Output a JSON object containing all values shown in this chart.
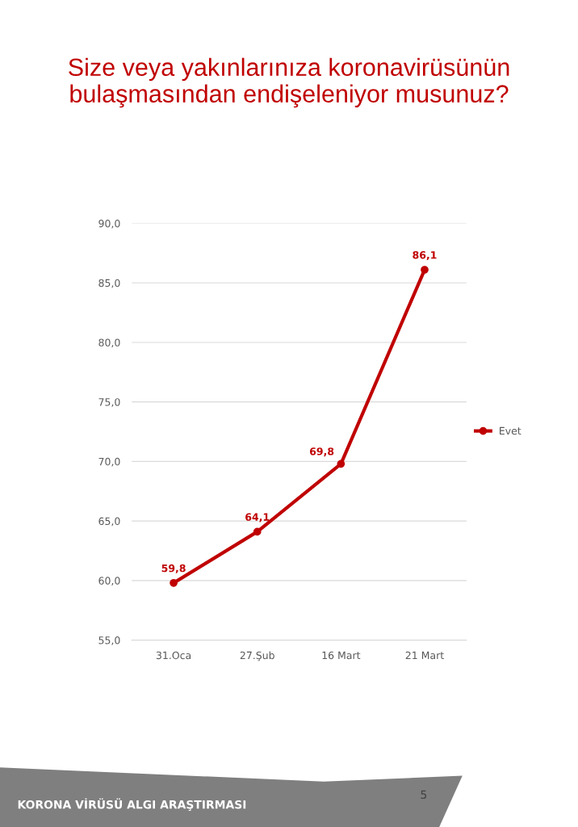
{
  "chart_data": {
    "type": "line",
    "title": "Size veya yakınlarınıza koronavirüsünün\nbulaşmasından endişeleniyor musunuz?",
    "categories": [
      "31.Oca",
      "27.Şub",
      "16 Mart",
      "21 Mart"
    ],
    "series": [
      {
        "name": "Evet",
        "color": "#c00000",
        "values": [
          59.8,
          64.1,
          69.8,
          86.1
        ],
        "value_labels": [
          "59,8",
          "64,1",
          "69,8",
          "86,1"
        ]
      }
    ],
    "ylim": [
      55,
      90
    ],
    "yticks": [
      {
        "value": 55,
        "label": "55,0"
      },
      {
        "value": 60,
        "label": "60,0"
      },
      {
        "value": 65,
        "label": "65,0"
      },
      {
        "value": 70,
        "label": "70,0"
      },
      {
        "value": 75,
        "label": "75,0"
      },
      {
        "value": 80,
        "label": "80,0"
      },
      {
        "value": 85,
        "label": "85,0"
      },
      {
        "value": 90,
        "label": "90,0"
      }
    ],
    "grid": "y",
    "legend": "right",
    "marker": "circle",
    "line_style": "solid",
    "annotations": [
      "KORONA VİRÜSÜ ALGI ARAŞTIRMASI",
      "5"
    ]
  }
}
